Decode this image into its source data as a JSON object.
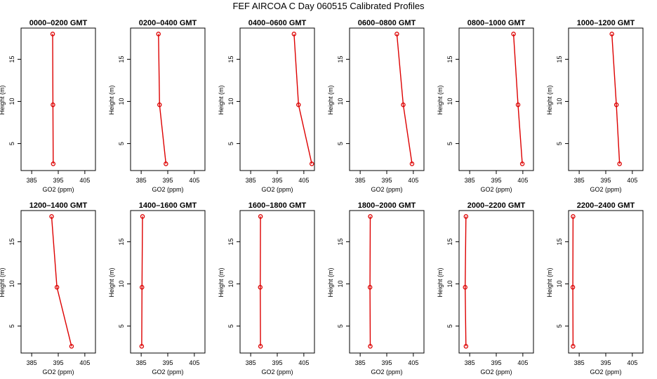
{
  "title": "FEF AIRCOA C  Day 060515  Calibrated Profiles",
  "chart_data": [
    {
      "type": "line",
      "title": "0000–0200 GMT",
      "xlabel": "GO2 (ppm)",
      "ylabel": "Height (m)",
      "xlim": [
        381,
        409
      ],
      "ylim": [
        1.8,
        18.7
      ],
      "xticks": [
        385,
        395,
        405
      ],
      "yticks": [
        5,
        10,
        15
      ],
      "x": [
        392.9,
        393.0,
        393.1
      ],
      "y": [
        18,
        9.6,
        2.6
      ],
      "color": "#dd0000"
    },
    {
      "type": "line",
      "title": "0200–0400 GMT",
      "xlabel": "GO2 (ppm)",
      "ylabel": "Height (m)",
      "xlim": [
        381,
        409
      ],
      "ylim": [
        1.8,
        18.7
      ],
      "xticks": [
        385,
        395,
        405
      ],
      "yticks": [
        5,
        10,
        15
      ],
      "x": [
        391.5,
        391.9,
        394.3
      ],
      "y": [
        18,
        9.6,
        2.6
      ],
      "color": "#dd0000"
    },
    {
      "type": "line",
      "title": "0400–0600 GMT",
      "xlabel": "GO2 (ppm)",
      "ylabel": "Height (m)",
      "xlim": [
        381,
        409
      ],
      "ylim": [
        1.8,
        18.7
      ],
      "xticks": [
        385,
        395,
        405
      ],
      "yticks": [
        5,
        10,
        15
      ],
      "x": [
        401.3,
        403.0,
        408.0
      ],
      "y": [
        18,
        9.6,
        2.6
      ],
      "color": "#dd0000"
    },
    {
      "type": "line",
      "title": "0600–0800 GMT",
      "xlabel": "GO2 (ppm)",
      "ylabel": "Height (m)",
      "xlim": [
        381,
        409
      ],
      "ylim": [
        1.8,
        18.7
      ],
      "xticks": [
        385,
        395,
        405
      ],
      "yticks": [
        5,
        10,
        15
      ],
      "x": [
        398.8,
        401.2,
        404.5
      ],
      "y": [
        18,
        9.6,
        2.6
      ],
      "color": "#dd0000"
    },
    {
      "type": "line",
      "title": "0800–1000 GMT",
      "xlabel": "GO2 (ppm)",
      "ylabel": "Height (m)",
      "xlim": [
        381,
        409
      ],
      "ylim": [
        1.8,
        18.7
      ],
      "xticks": [
        385,
        395,
        405
      ],
      "yticks": [
        5,
        10,
        15
      ],
      "x": [
        401.5,
        403.2,
        404.8
      ],
      "y": [
        18,
        9.6,
        2.6
      ],
      "color": "#dd0000"
    },
    {
      "type": "line",
      "title": "1000–1200 GMT",
      "xlabel": "GO2 (ppm)",
      "ylabel": "Height (m)",
      "xlim": [
        381,
        409
      ],
      "ylim": [
        1.8,
        18.7
      ],
      "xticks": [
        385,
        395,
        405
      ],
      "yticks": [
        5,
        10,
        15
      ],
      "x": [
        397.3,
        399.0,
        400.2
      ],
      "y": [
        18,
        9.6,
        2.6
      ],
      "color": "#dd0000"
    },
    {
      "type": "line",
      "title": "1200–1400 GMT",
      "xlabel": "GO2 (ppm)",
      "ylabel": "Height (m)",
      "xlim": [
        381,
        409
      ],
      "ylim": [
        1.8,
        18.7
      ],
      "xticks": [
        385,
        395,
        405
      ],
      "yticks": [
        5,
        10,
        15
      ],
      "x": [
        392.5,
        394.5,
        400.0
      ],
      "y": [
        18,
        9.6,
        2.6
      ],
      "color": "#dd0000"
    },
    {
      "type": "line",
      "title": "1400–1600 GMT",
      "xlabel": "GO2 (ppm)",
      "ylabel": "Height (m)",
      "xlim": [
        381,
        409
      ],
      "ylim": [
        1.8,
        18.7
      ],
      "xticks": [
        385,
        395,
        405
      ],
      "yticks": [
        5,
        10,
        15
      ],
      "x": [
        385.5,
        385.3,
        385.2
      ],
      "y": [
        18,
        9.6,
        2.6
      ],
      "color": "#dd0000"
    },
    {
      "type": "line",
      "title": "1600–1800 GMT",
      "xlabel": "GO2 (ppm)",
      "ylabel": "Height (m)",
      "xlim": [
        381,
        409
      ],
      "ylim": [
        1.8,
        18.7
      ],
      "xticks": [
        385,
        395,
        405
      ],
      "yticks": [
        5,
        10,
        15
      ],
      "x": [
        388.7,
        388.6,
        388.7
      ],
      "y": [
        18,
        9.6,
        2.6
      ],
      "color": "#dd0000"
    },
    {
      "type": "line",
      "title": "1800–2000 GMT",
      "xlabel": "GO2 (ppm)",
      "ylabel": "Height (m)",
      "xlim": [
        381,
        409
      ],
      "ylim": [
        1.8,
        18.7
      ],
      "xticks": [
        385,
        395,
        405
      ],
      "yticks": [
        5,
        10,
        15
      ],
      "x": [
        388.8,
        388.7,
        388.8
      ],
      "y": [
        18,
        9.6,
        2.6
      ],
      "color": "#dd0000"
    },
    {
      "type": "line",
      "title": "2000–2200 GMT",
      "xlabel": "GO2 (ppm)",
      "ylabel": "Height (m)",
      "xlim": [
        381,
        409
      ],
      "ylim": [
        1.8,
        18.7
      ],
      "xticks": [
        385,
        395,
        405
      ],
      "yticks": [
        5,
        10,
        15
      ],
      "x": [
        383.6,
        383.3,
        383.6
      ],
      "y": [
        18,
        9.6,
        2.6
      ],
      "color": "#dd0000"
    },
    {
      "type": "line",
      "title": "2200–2400 GMT",
      "xlabel": "GO2 (ppm)",
      "ylabel": "Height (m)",
      "xlim": [
        381,
        409
      ],
      "ylim": [
        1.8,
        18.7
      ],
      "xticks": [
        385,
        395,
        405
      ],
      "yticks": [
        5,
        10,
        15
      ],
      "x": [
        382.7,
        382.6,
        382.7
      ],
      "y": [
        18,
        9.6,
        2.6
      ],
      "color": "#dd0000"
    }
  ]
}
